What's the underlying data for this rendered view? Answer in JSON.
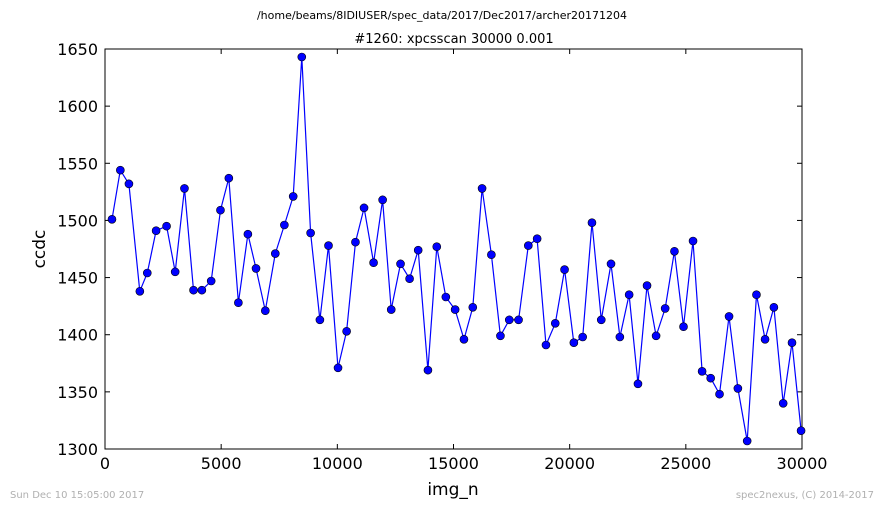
{
  "header": {
    "path": "/home/beams/8IDIUSER/spec_data/2017/Dec2017/archer20171204"
  },
  "footer": {
    "timestamp": "Sun Dec 10 15:05:00 2017",
    "credit": "spec2nexus, (C) 2014-2017"
  },
  "chart_data": {
    "type": "line",
    "title": "#1260: xpcsscan 30000 0.001",
    "xlabel": "img_n",
    "ylabel": "ccdc",
    "xlim": [
      0,
      30000
    ],
    "ylim": [
      1300,
      1650
    ],
    "xticks": [
      0,
      5000,
      10000,
      15000,
      20000,
      25000,
      30000
    ],
    "yticks": [
      1300,
      1350,
      1400,
      1450,
      1500,
      1550,
      1600,
      1650
    ],
    "grid": false,
    "series_color": "#0000ff",
    "series": [
      {
        "x": [
          300,
          660,
          1030,
          1500,
          1820,
          2200,
          2650,
          3020,
          3420,
          3810,
          4170,
          4570,
          4970,
          5330,
          5740,
          6150,
          6500,
          6900,
          7330,
          7720,
          8100,
          8470,
          8850,
          9250,
          9620,
          10030,
          10400,
          10780,
          11150,
          11560,
          11950,
          12320,
          12720,
          13110,
          13480,
          13900,
          14280,
          14670,
          15070,
          15450,
          15830,
          16230,
          16630,
          17020,
          17400,
          17800,
          18220,
          18600,
          18980,
          19380,
          19780,
          20180,
          20560,
          20960,
          21360,
          21780,
          22160,
          22560,
          22940,
          23330,
          23720,
          24110,
          24510,
          24900,
          25310,
          25700,
          26070,
          26450,
          26860,
          27240,
          27640,
          28040,
          28410,
          28790,
          29190,
          29570,
          29960
        ],
        "y": [
          1501,
          1544,
          1532,
          1438,
          1454,
          1491,
          1495,
          1455,
          1528,
          1439,
          1439,
          1447,
          1509,
          1537,
          1428,
          1488,
          1458,
          1421,
          1471,
          1496,
          1521,
          1643,
          1489,
          1413,
          1478,
          1371,
          1403,
          1481,
          1511,
          1463,
          1518,
          1422,
          1462,
          1449,
          1474,
          1369,
          1477,
          1433,
          1422,
          1396,
          1424,
          1528,
          1470,
          1399,
          1413,
          1413,
          1478,
          1484,
          1391,
          1410,
          1457,
          1393,
          1398,
          1498,
          1413,
          1462,
          1398,
          1435,
          1357,
          1443,
          1399,
          1423,
          1473,
          1407,
          1482,
          1368,
          1362,
          1348,
          1416,
          1353,
          1307,
          1435,
          1396,
          1424,
          1340,
          1393,
          1316
        ]
      }
    ]
  }
}
